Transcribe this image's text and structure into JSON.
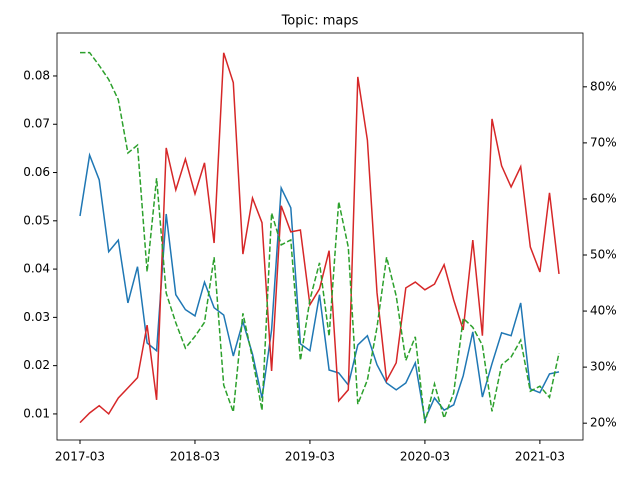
{
  "chart_data": {
    "type": "line",
    "title": "Topic: maps",
    "x": [
      "2017-03",
      "2017-04",
      "2017-05",
      "2017-06",
      "2017-07",
      "2017-08",
      "2017-09",
      "2017-10",
      "2017-11",
      "2017-12",
      "2018-01",
      "2018-02",
      "2018-03",
      "2018-04",
      "2018-05",
      "2018-06",
      "2018-07",
      "2018-08",
      "2018-09",
      "2018-10",
      "2018-11",
      "2018-12",
      "2019-01",
      "2019-02",
      "2019-03",
      "2019-04",
      "2019-05",
      "2019-06",
      "2019-07",
      "2019-08",
      "2019-09",
      "2019-10",
      "2019-11",
      "2019-12",
      "2020-01",
      "2020-02",
      "2020-03",
      "2020-04",
      "2020-05",
      "2020-06",
      "2020-07",
      "2020-08",
      "2020-09",
      "2020-10",
      "2020-11",
      "2020-12",
      "2021-01",
      "2021-02",
      "2021-03",
      "2021-04",
      "2021-05"
    ],
    "xticks": [
      "2017-03",
      "2018-03",
      "2019-03",
      "2020-03",
      "2021-03"
    ],
    "ylim": [
      0.0046,
      0.0889
    ],
    "yticks": [
      0.01,
      0.02,
      0.03,
      0.04,
      0.05,
      0.06,
      0.07,
      0.08
    ],
    "y2lim": [
      17.0,
      89.6
    ],
    "y2ticks": [
      {
        "value": 20,
        "label": "20%"
      },
      {
        "value": 30,
        "label": "30%"
      },
      {
        "value": 40,
        "label": "40%"
      },
      {
        "value": 50,
        "label": "50%"
      },
      {
        "value": 60,
        "label": "60%"
      },
      {
        "value": 70,
        "label": "70%"
      },
      {
        "value": 80,
        "label": "80%"
      }
    ],
    "series": [
      {
        "color": "#1f77b4",
        "values": [
          0.051,
          0.0636,
          0.0585,
          0.0436,
          0.046,
          0.033,
          0.0405,
          0.0247,
          0.0231,
          0.0514,
          0.0347,
          0.0316,
          0.0303,
          0.0373,
          0.032,
          0.0305,
          0.022,
          0.0291,
          0.0224,
          0.0133,
          0.0274,
          0.0568,
          0.0527,
          0.0245,
          0.0231,
          0.0347,
          0.0191,
          0.0185,
          0.016,
          0.0243,
          0.0262,
          0.0202,
          0.0164,
          0.015,
          0.0164,
          0.0206,
          0.0088,
          0.0133,
          0.0108,
          0.0119,
          0.0179,
          0.027,
          0.0135,
          0.0204,
          0.0268,
          0.0262,
          0.033,
          0.0152,
          0.0144,
          0.0183,
          0.0187
        ]
      },
      {
        "color": "#d62728",
        "values": [
          0.0082,
          0.0102,
          0.0117,
          0.01,
          0.0133,
          0.0154,
          0.0175,
          0.0284,
          0.0129,
          0.0651,
          0.0564,
          0.0628,
          0.0556,
          0.062,
          0.0454,
          0.0848,
          0.0786,
          0.0431,
          0.0547,
          0.0496,
          0.0189,
          0.0531,
          0.0477,
          0.0481,
          0.0326,
          0.0359,
          0.0438,
          0.0127,
          0.015,
          0.0798,
          0.0667,
          0.0351,
          0.0169,
          0.0206,
          0.0361,
          0.0373,
          0.0357,
          0.0369,
          0.0409,
          0.0336,
          0.0274,
          0.046,
          0.0262,
          0.0711,
          0.0614,
          0.057,
          0.0612,
          0.0446,
          0.0394,
          0.0558,
          0.039
        ]
      },
      {
        "color": "#2ca02c",
        "dashed": true,
        "axis": "y2",
        "values": [
          86.1,
          86.1,
          83.8,
          81.3,
          77.7,
          68.2,
          69.6,
          47.0,
          63.7,
          43.2,
          37.9,
          33.4,
          35.5,
          38.0,
          49.6,
          26.8,
          22.0,
          39.6,
          31.6,
          22.3,
          57.5,
          51.8,
          52.7,
          31.2,
          42.0,
          48.6,
          35.5,
          59.5,
          51.4,
          23.4,
          27.7,
          37.1,
          49.6,
          42.7,
          31.2,
          35.4,
          20.0,
          27.0,
          20.9,
          25.4,
          38.7,
          37.1,
          33.9,
          22.1,
          30.4,
          31.8,
          34.8,
          25.7,
          26.6,
          24.6,
          32.5
        ]
      }
    ]
  }
}
